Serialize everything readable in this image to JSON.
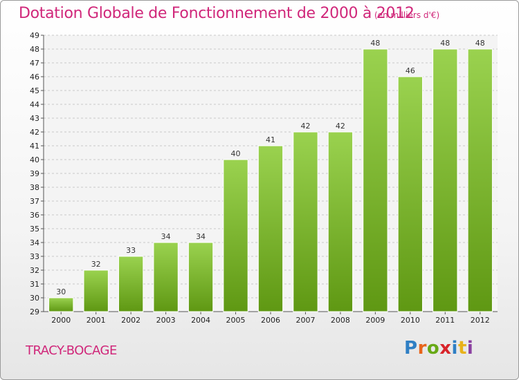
{
  "title": "Dotation Globale de Fonctionnement de 2000 à 2012",
  "subtitle": "(en milliers d'€)",
  "commune": "TRACY-BOCAGE",
  "logo": {
    "letters": [
      "P",
      "r",
      "o",
      "x",
      "i",
      "t",
      "i"
    ],
    "colors": [
      "#2f7fc4",
      "#e8641a",
      "#67a916",
      "#d8242a",
      "#2f7fc4",
      "#e8b21a",
      "#8a3fa0"
    ]
  },
  "colors": {
    "bar_top": "#9ad24f",
    "bar_bottom": "#5f9813",
    "accent": "#d0277a"
  },
  "chart_data": {
    "type": "bar",
    "categories": [
      "2000",
      "2001",
      "2002",
      "2003",
      "2004",
      "2005",
      "2006",
      "2007",
      "2008",
      "2009",
      "2010",
      "2011",
      "2012"
    ],
    "values": [
      30,
      32,
      33,
      34,
      34,
      40,
      41,
      42,
      42,
      48,
      46,
      48,
      48
    ],
    "ylim": [
      29,
      49
    ],
    "yticks": [
      "29",
      "30",
      "31",
      "32",
      "33",
      "34",
      "35",
      "36",
      "37",
      "38",
      "39",
      "40",
      "41",
      "42",
      "43",
      "44",
      "45",
      "46",
      "47",
      "48",
      "49"
    ],
    "grid": true,
    "xlabel": "",
    "ylabel": ""
  }
}
